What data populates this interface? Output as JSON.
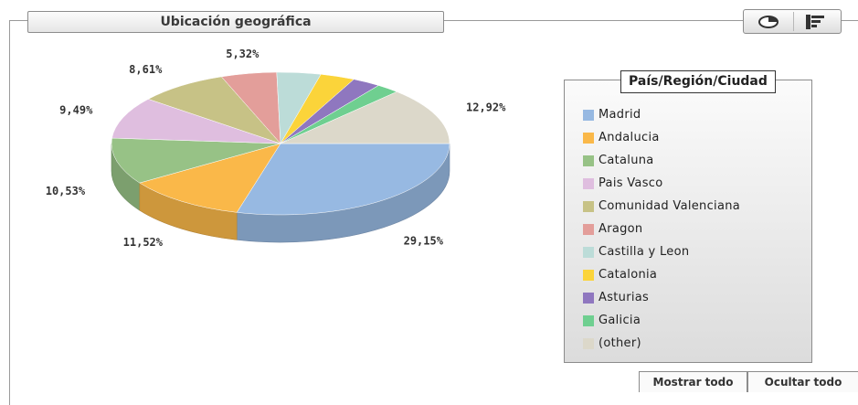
{
  "widget": {
    "title": "Ubicación geográfica"
  },
  "toolbar": {
    "pie_icon": "pie-chart-icon",
    "bar_icon": "bar-chart-icon"
  },
  "legend": {
    "title": "País/Región/Ciudad",
    "items": [
      {
        "label": "Madrid",
        "color": "#97b9e2"
      },
      {
        "label": "Andalucia",
        "color": "#fab849"
      },
      {
        "label": "Cataluna",
        "color": "#97c286"
      },
      {
        "label": "Pais Vasco",
        "color": "#dfbedf"
      },
      {
        "label": "Comunidad Valenciana",
        "color": "#c7c286"
      },
      {
        "label": "Aragon",
        "color": "#e39e9a"
      },
      {
        "label": "Castilla y Leon",
        "color": "#bcdcd8"
      },
      {
        "label": "Catalonia",
        "color": "#fbd43a"
      },
      {
        "label": "Asturias",
        "color": "#8f77bf"
      },
      {
        "label": "Galicia",
        "color": "#6fcf90"
      },
      {
        "label": "(other)",
        "color": "#dcd8ca"
      }
    ]
  },
  "buttons": {
    "show_all": "Mostrar todo",
    "hide_all": "Ocultar todo"
  },
  "chart_data": {
    "type": "pie",
    "title": "Ubicación geográfica",
    "legend_title": "País/Región/Ciudad",
    "legend_position": "right",
    "categories": [
      "Madrid",
      "Andalucia",
      "Cataluna",
      "Pais Vasco",
      "Comunidad Valenciana",
      "Aragon",
      "Castilla y Leon",
      "Catalonia",
      "Asturias",
      "Galicia",
      "(other)"
    ],
    "values": [
      29.15,
      11.52,
      10.53,
      9.49,
      8.61,
      5.32,
      4.2,
      3.3,
      2.7,
      2.23,
      12.92
    ],
    "data_labels": [
      "29,15%",
      "11,52%",
      "10,53%",
      "9,49%",
      "8,61%",
      "5,32%",
      "",
      "",
      "",
      "",
      "12,92%"
    ]
  }
}
